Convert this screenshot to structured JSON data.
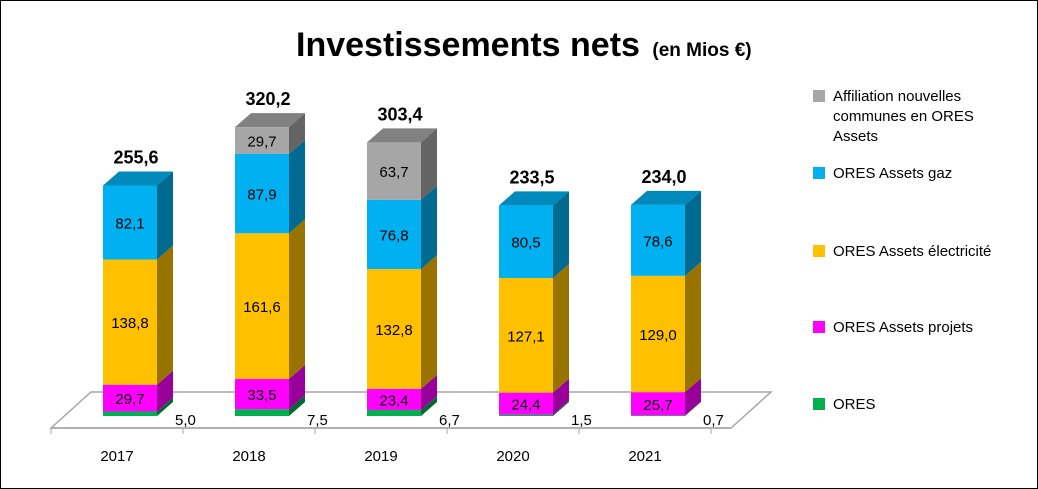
{
  "chart_data": {
    "type": "bar",
    "stacked": true,
    "three_d": true,
    "title": "Investissements nets",
    "subtitle": "(en Mios €)",
    "categories": [
      "2017",
      "2018",
      "2019",
      "2020",
      "2021"
    ],
    "series": [
      {
        "name": "ORES",
        "color": "#00b050",
        "values": [
          5.0,
          7.5,
          6.7,
          1.5,
          0.7
        ],
        "labels": [
          "5,0",
          "7,5",
          "6,7",
          "1,5",
          "0,7"
        ]
      },
      {
        "name": "ORES Assets projets",
        "color": "#ff00ff",
        "values": [
          29.7,
          33.5,
          23.4,
          24.4,
          25.7
        ],
        "labels": [
          "29,7",
          "33,5",
          "23,4",
          "24,4",
          "25,7"
        ]
      },
      {
        "name": "ORES Assets  électricité",
        "color": "#ffc000",
        "values": [
          138.8,
          161.6,
          132.8,
          127.1,
          129.0
        ],
        "labels": [
          "138,8",
          "161,6",
          "132,8",
          "127,1",
          "129,0"
        ]
      },
      {
        "name": "ORES Assets gaz",
        "color": "#00b0f0",
        "values": [
          82.1,
          87.9,
          76.8,
          80.5,
          78.6
        ],
        "labels": [
          "82,1",
          "87,9",
          "76,8",
          "80,5",
          "78,6"
        ]
      },
      {
        "name": "Affiliation nouvelles communes en ORES Assets",
        "color": "#a6a6a6",
        "values": [
          null,
          29.7,
          63.7,
          null,
          null
        ],
        "labels": [
          "",
          "29,7",
          "63,7",
          "",
          ""
        ]
      }
    ],
    "totals": [
      "255,6",
      "320,2",
      "303,4",
      "233,5",
      "234,0"
    ],
    "legend_position": "right",
    "legend_lines": [
      [
        "Affiliation nouvelles",
        "communes en ORES",
        "Assets"
      ],
      [
        "ORES Assets gaz"
      ],
      [
        "ORES Assets  électricité"
      ],
      [
        "ORES Assets projets"
      ],
      [
        "ORES"
      ]
    ],
    "grid": false
  }
}
